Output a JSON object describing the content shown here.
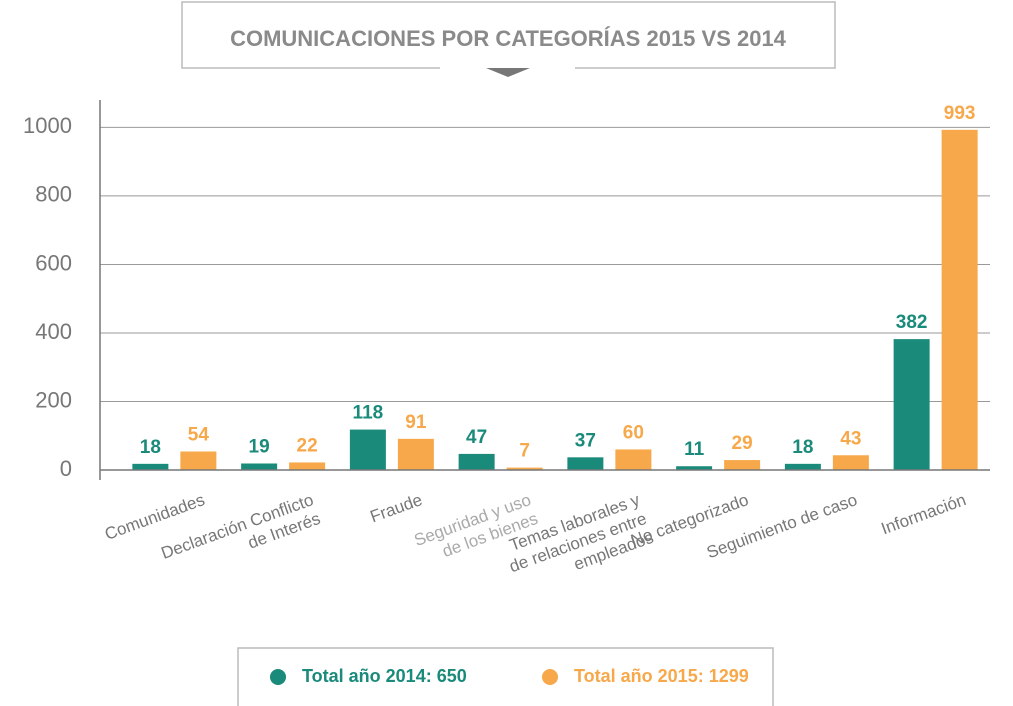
{
  "chart_data": {
    "type": "bar",
    "title": "COMUNICACIONES POR CATEGORÍAS 2015 VS 2014",
    "categories": [
      [
        "Comunidades"
      ],
      [
        "Declaración Conflicto",
        "de Interés"
      ],
      [
        "Fraude"
      ],
      [
        "Seguridad y uso",
        "de los bienes"
      ],
      [
        "Temas laborales y",
        "de relaciones entre",
        "empleados"
      ],
      [
        "No categorizado"
      ],
      [
        "Seguimiento de caso"
      ],
      [
        "Información"
      ]
    ],
    "series": [
      {
        "name": "Total año 2014: 650",
        "color": "#1a8a7a",
        "values": [
          18,
          19,
          118,
          47,
          37,
          11,
          18,
          382
        ]
      },
      {
        "name": "Total año 2015: 1299",
        "color": "#f7a84a",
        "values": [
          54,
          22,
          91,
          7,
          60,
          29,
          43,
          993
        ]
      }
    ],
    "ylim": [
      0,
      1080
    ],
    "yticks": [
      0,
      200,
      400,
      600,
      800,
      1000
    ],
    "grid": true,
    "legend": "bottom"
  }
}
